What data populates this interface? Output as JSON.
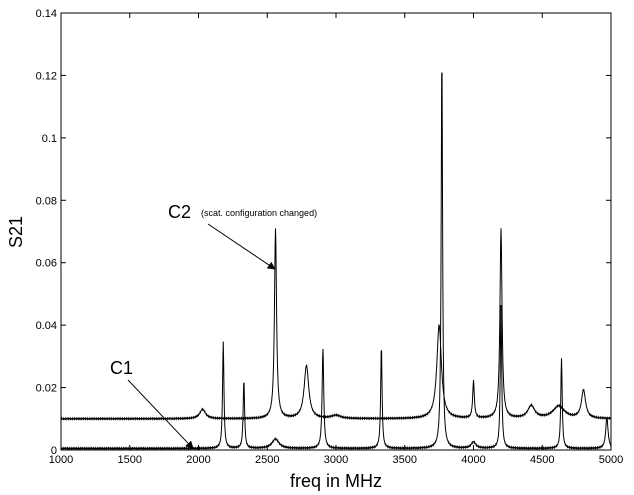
{
  "chart_data": {
    "type": "line",
    "xlabel": "freq in MHz",
    "ylabel": "S21",
    "xlim": [
      1000,
      5000
    ],
    "ylim": [
      0,
      0.14
    ],
    "xticks": [
      1000,
      1500,
      2000,
      2500,
      3000,
      3500,
      4000,
      4500,
      5000
    ],
    "yticks": [
      0,
      0.02,
      0.04,
      0.06,
      0.08,
      0.1,
      0.12,
      0.14
    ],
    "xtick_labels": [
      "1000",
      "1500",
      "2000",
      "2500",
      "3000",
      "3500",
      "4000",
      "4500",
      "5000"
    ],
    "ytick_labels": [
      "0",
      "0.02",
      "0.04",
      "0.06",
      "0.08",
      "0.1",
      "0.12",
      "0.14"
    ],
    "grid": false,
    "series": [
      {
        "name": "C1",
        "baseline": 0.0005,
        "peaks": [
          {
            "f": 2180,
            "a": 0.034,
            "w": 6
          },
          {
            "f": 2330,
            "a": 0.022,
            "w": 6
          },
          {
            "f": 2560,
            "a": 0.003,
            "w": 30
          },
          {
            "f": 2905,
            "a": 0.032,
            "w": 7
          },
          {
            "f": 3330,
            "a": 0.033,
            "w": 6
          },
          {
            "f": 3770,
            "a": 0.127,
            "w": 6
          },
          {
            "f": 4000,
            "a": 0.002,
            "w": 20
          },
          {
            "f": 4200,
            "a": 0.046,
            "w": 6
          },
          {
            "f": 4640,
            "a": 0.029,
            "w": 6
          },
          {
            "f": 4970,
            "a": 0.01,
            "w": 10
          }
        ]
      },
      {
        "name": "C2",
        "baseline": 0.01,
        "peaks": [
          {
            "f": 2030,
            "a": 0.003,
            "w": 25
          },
          {
            "f": 2560,
            "a": 0.061,
            "w": 9
          },
          {
            "f": 2785,
            "a": 0.017,
            "w": 20
          },
          {
            "f": 3000,
            "a": 0.001,
            "w": 40
          },
          {
            "f": 3750,
            "a": 0.03,
            "w": 20
          },
          {
            "f": 4000,
            "a": 0.012,
            "w": 7
          },
          {
            "f": 4200,
            "a": 0.061,
            "w": 9
          },
          {
            "f": 4420,
            "a": 0.004,
            "w": 30
          },
          {
            "f": 4620,
            "a": 0.004,
            "w": 50
          },
          {
            "f": 4800,
            "a": 0.009,
            "w": 18
          }
        ]
      }
    ],
    "annotations": [
      {
        "id": "c1",
        "text": "C1",
        "target_x": 1960,
        "target_y": 0.0005
      },
      {
        "id": "c2",
        "text": "C2",
        "subtext": "(scat. configuration changed)",
        "target_x": 2555,
        "target_y": 0.058
      }
    ]
  }
}
